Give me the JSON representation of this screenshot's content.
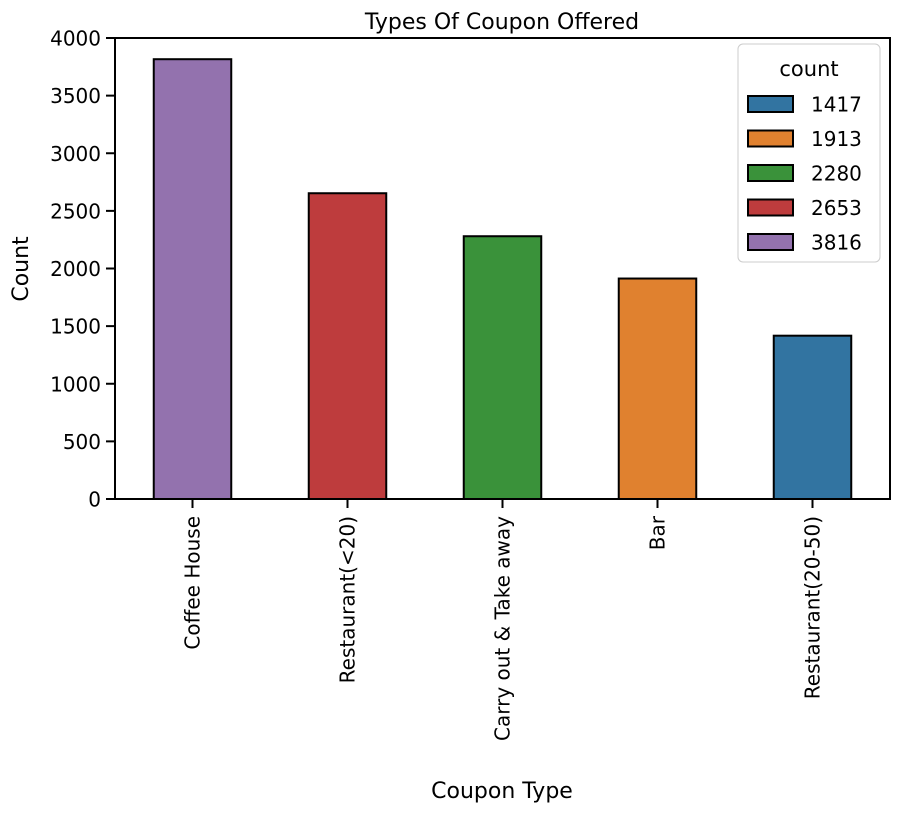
{
  "chart_data": {
    "type": "bar",
    "title": "Types Of Coupon Offered",
    "xlabel": "Coupon Type",
    "ylabel": "Count",
    "ylim": [
      0,
      4000
    ],
    "yticks": [
      0,
      500,
      1000,
      1500,
      2000,
      2500,
      3000,
      3500,
      4000
    ],
    "categories": [
      "Coffee House",
      "Restaurant(<20)",
      "Carry out & Take away",
      "Bar",
      "Restaurant(20-50)"
    ],
    "values": [
      3816,
      2653,
      2280,
      1913,
      1417
    ],
    "bar_colors": [
      "#9372ae",
      "#be3c3d",
      "#3a923a",
      "#e0812f",
      "#3274a1"
    ],
    "grid": false,
    "legend": {
      "title": "count",
      "placement": "top-right",
      "entries": [
        {
          "label": "1417",
          "color": "#3274a1"
        },
        {
          "label": "1913",
          "color": "#e0812f"
        },
        {
          "label": "2280",
          "color": "#3a923a"
        },
        {
          "label": "2653",
          "color": "#be3c3d"
        },
        {
          "label": "3816",
          "color": "#9372ae"
        }
      ]
    }
  }
}
